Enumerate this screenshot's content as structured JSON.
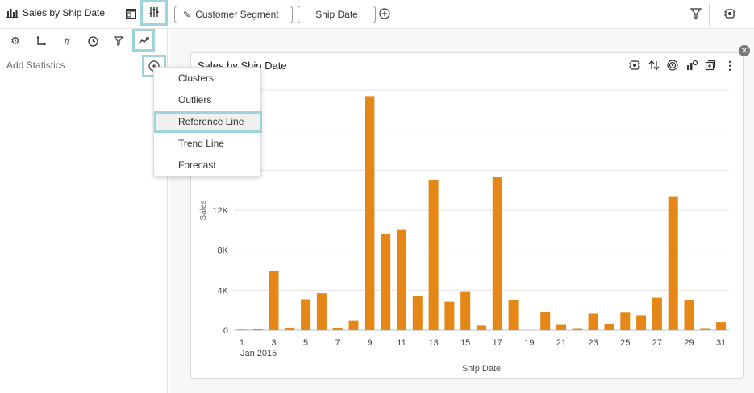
{
  "header": {
    "title": "Sales by Ship Date",
    "pills": [
      "Customer Segment",
      "Ship Date"
    ],
    "pill_icon": "pin-icon"
  },
  "left_panel": {
    "icons": [
      "gear-icon",
      "axes-icon",
      "hash-icon",
      "clock-icon",
      "filter-icon",
      "trend-icon"
    ],
    "add_statistics_label": "Add Statistics"
  },
  "menu": {
    "items": [
      "Clusters",
      "Outliers",
      "Reference Line",
      "Trend Line",
      "Forecast"
    ],
    "selected": "Reference Line"
  },
  "card": {
    "title": "Sales by Ship Date"
  },
  "colors": {
    "bar": "#E48716",
    "highlight": "#9FD3DC"
  },
  "chart_data": {
    "type": "bar",
    "title": "Sales by Ship Date",
    "xlabel": "Ship Date",
    "ylabel": "Sales",
    "x_secondary_label": "Jan 2015",
    "categories": [
      1,
      2,
      3,
      4,
      5,
      6,
      7,
      8,
      9,
      10,
      11,
      12,
      13,
      14,
      15,
      16,
      17,
      18,
      19,
      20,
      21,
      22,
      23,
      24,
      25,
      26,
      27,
      28,
      29,
      30,
      31
    ],
    "x_tick_labels": [
      "1",
      "3",
      "5",
      "7",
      "9",
      "11",
      "13",
      "15",
      "17",
      "19",
      "21",
      "23",
      "25",
      "27",
      "29",
      "31"
    ],
    "values": [
      60,
      150,
      5900,
      250,
      3100,
      3700,
      250,
      1000,
      23400,
      9600,
      10100,
      3400,
      15000,
      2850,
      3900,
      450,
      15300,
      3000,
      0,
      1850,
      600,
      200,
      1650,
      650,
      1750,
      1500,
      3250,
      13400,
      3000,
      200,
      800
    ],
    "y_tick_labels": [
      "0",
      "4K",
      "8K",
      "12K"
    ],
    "ylim": [
      0,
      24000
    ],
    "grid": true
  }
}
